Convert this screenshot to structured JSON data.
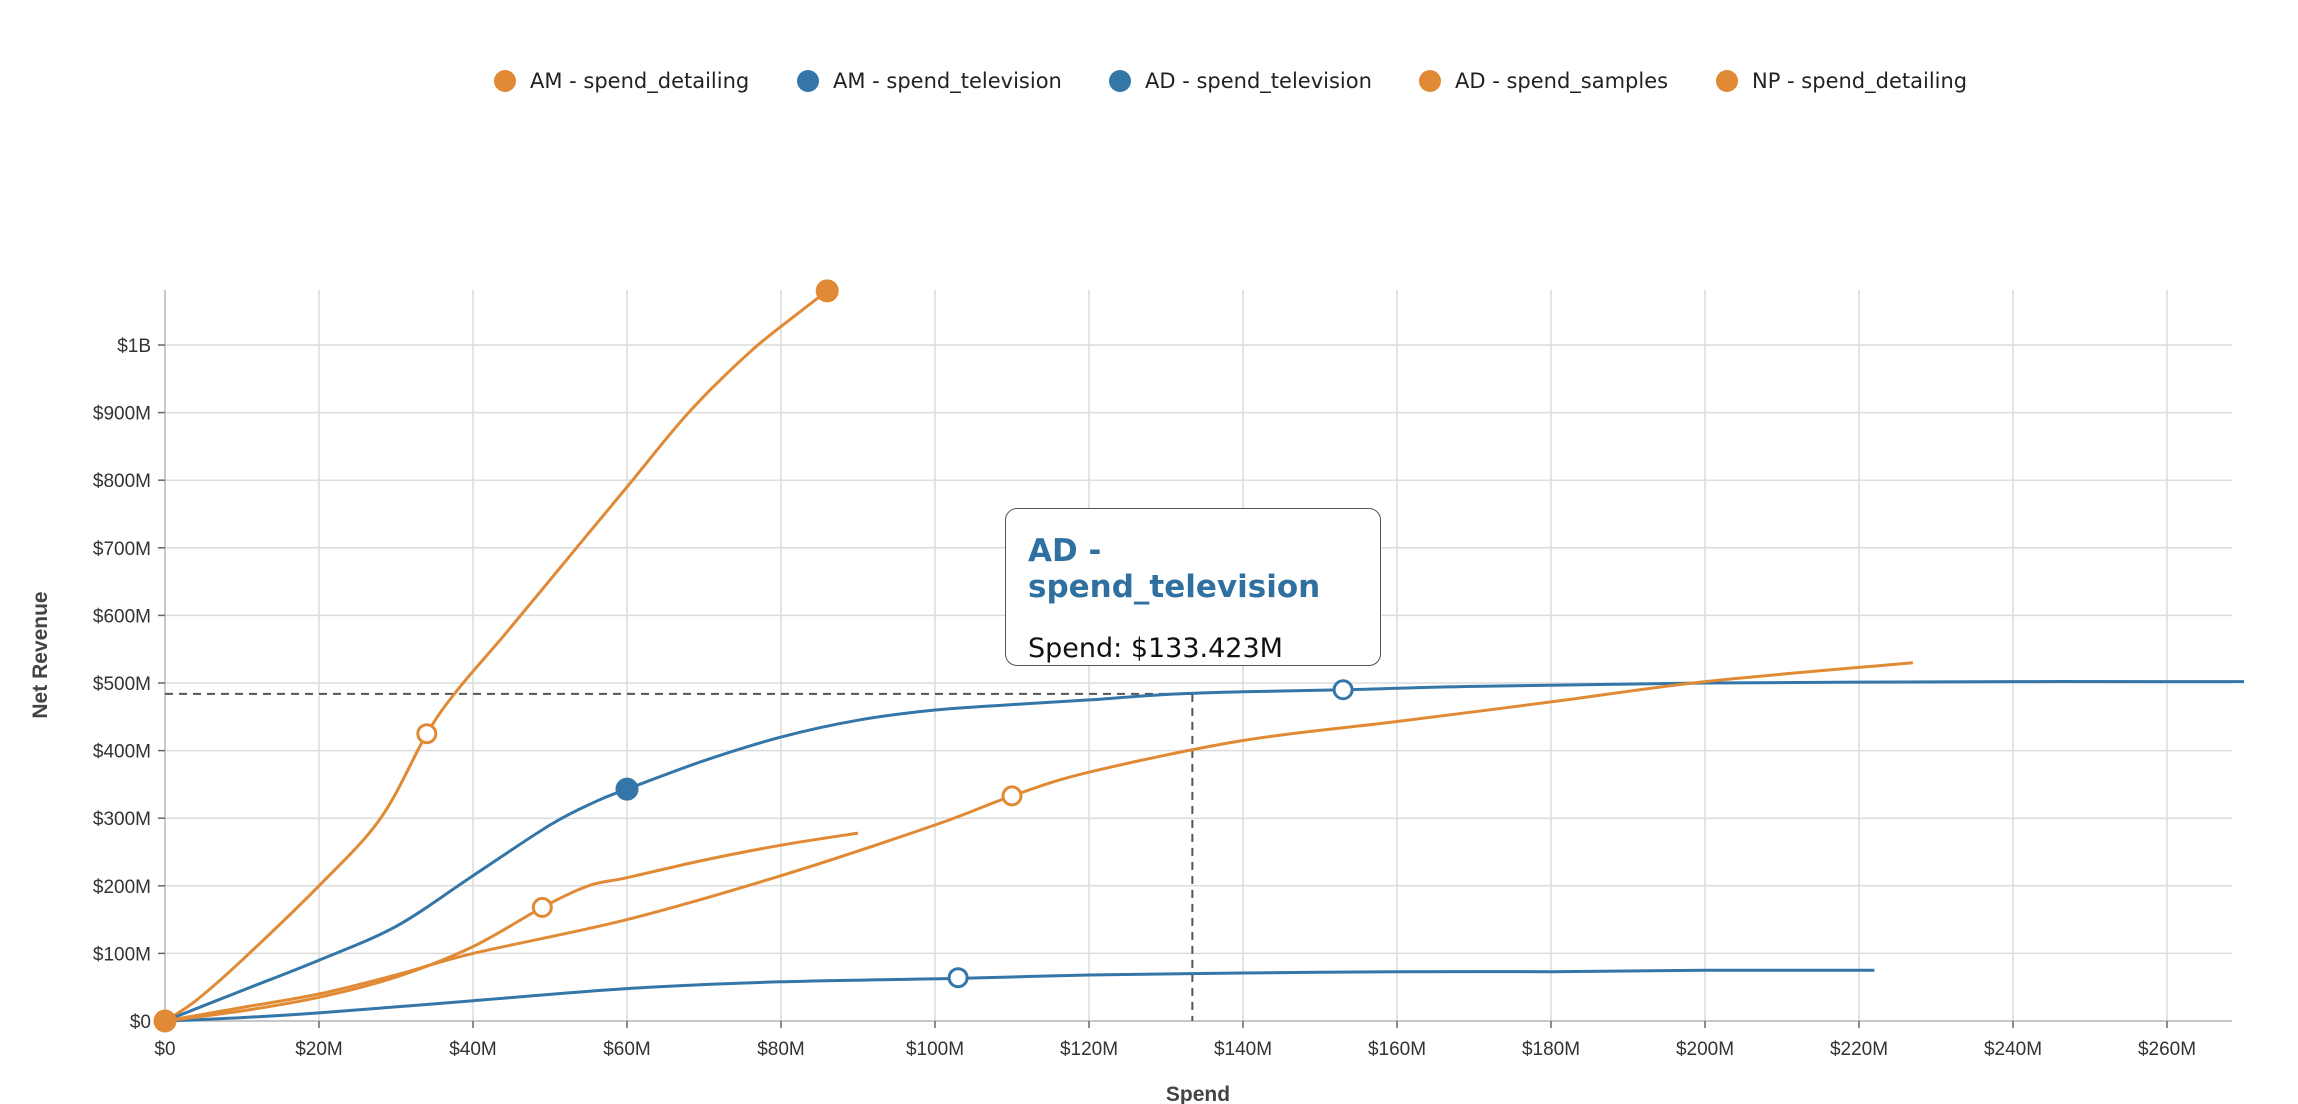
{
  "chart_data": {
    "type": "line",
    "title": "",
    "xlabel": "Spend",
    "ylabel": "Net Revenue",
    "xlim": [
      0,
      270
    ],
    "ylim": [
      0,
      1080
    ],
    "x_unit": "$M",
    "y_unit": "$M",
    "grid": true,
    "legend_position": "top-center",
    "x_ticks": [
      0,
      20,
      40,
      60,
      80,
      100,
      120,
      140,
      160,
      180,
      200,
      220,
      240,
      260
    ],
    "x_tick_labels": [
      "$0",
      "$20M",
      "$40M",
      "$60M",
      "$80M",
      "$100M",
      "$120M",
      "$140M",
      "$160M",
      "$180M",
      "$200M",
      "$220M",
      "$240M",
      "$260M"
    ],
    "y_ticks": [
      0,
      100,
      200,
      300,
      400,
      500,
      600,
      700,
      800,
      900,
      1000
    ],
    "y_tick_labels": [
      "$0",
      "$100M",
      "$200M",
      "$300M",
      "$400M",
      "$500M",
      "$600M",
      "$700M",
      "$800M",
      "$900M",
      "$1B"
    ],
    "series": [
      {
        "name": "AM - spend_detailing",
        "color": "#e08a35",
        "points": [
          [
            0,
            0
          ],
          [
            4,
            30
          ],
          [
            10,
            90
          ],
          [
            20,
            200
          ],
          [
            28,
            300
          ],
          [
            34,
            425
          ],
          [
            38,
            490
          ],
          [
            44,
            570
          ],
          [
            52,
            680
          ],
          [
            60,
            790
          ],
          [
            68,
            900
          ],
          [
            76,
            990
          ],
          [
            82,
            1045
          ],
          [
            86,
            1080
          ]
        ],
        "markers": [
          {
            "x": 34,
            "y": 425,
            "filled": false
          },
          {
            "x": 86,
            "y": 1080,
            "filled": true
          }
        ]
      },
      {
        "name": "AM - spend_television",
        "color": "#3476a8",
        "points": [
          [
            0,
            0
          ],
          [
            10,
            45
          ],
          [
            20,
            90
          ],
          [
            30,
            140
          ],
          [
            40,
            215
          ],
          [
            50,
            290
          ],
          [
            56,
            325
          ],
          [
            60,
            343
          ],
          [
            70,
            385
          ],
          [
            80,
            420
          ],
          [
            90,
            445
          ],
          [
            100,
            460
          ],
          [
            110,
            468
          ],
          [
            120,
            475
          ],
          [
            130,
            483
          ],
          [
            140,
            487
          ],
          [
            153,
            490
          ],
          [
            170,
            495
          ],
          [
            200,
            500
          ],
          [
            240,
            502
          ],
          [
            270,
            502
          ]
        ],
        "markers": [
          {
            "x": 60,
            "y": 343,
            "filled": true
          },
          {
            "x": 153,
            "y": 490,
            "filled": false
          }
        ]
      },
      {
        "name": "AD - spend_television",
        "color": "#3476a8",
        "points": [
          [
            0,
            0
          ],
          [
            10,
            5
          ],
          [
            20,
            12
          ],
          [
            40,
            30
          ],
          [
            60,
            48
          ],
          [
            80,
            58
          ],
          [
            103,
            63
          ],
          [
            120,
            68
          ],
          [
            140,
            71
          ],
          [
            160,
            73
          ],
          [
            180,
            73
          ],
          [
            200,
            75
          ],
          [
            222,
            75
          ]
        ],
        "markers": [
          {
            "x": 103,
            "y": 64,
            "filled": false
          }
        ]
      },
      {
        "name": "AD - spend_samples",
        "color": "#e08a35",
        "points": [
          [
            0,
            0
          ],
          [
            10,
            15
          ],
          [
            20,
            35
          ],
          [
            30,
            65
          ],
          [
            40,
            110
          ],
          [
            49,
            168
          ],
          [
            55,
            200
          ],
          [
            60,
            212
          ],
          [
            70,
            238
          ],
          [
            80,
            260
          ],
          [
            90,
            278
          ]
        ],
        "markers": [
          {
            "x": 49,
            "y": 168,
            "filled": false
          }
        ]
      },
      {
        "name": "NP - spend_detailing",
        "color": "#e08a35",
        "points": [
          [
            0,
            0
          ],
          [
            10,
            20
          ],
          [
            20,
            40
          ],
          [
            30,
            68
          ],
          [
            40,
            100
          ],
          [
            60,
            150
          ],
          [
            80,
            215
          ],
          [
            100,
            290
          ],
          [
            110,
            333
          ],
          [
            120,
            368
          ],
          [
            140,
            415
          ],
          [
            160,
            443
          ],
          [
            180,
            472
          ],
          [
            200,
            502
          ],
          [
            227,
            530
          ]
        ],
        "markers": [
          {
            "x": 0,
            "y": 0,
            "filled": true
          },
          {
            "x": 110,
            "y": 333,
            "filled": false
          }
        ]
      }
    ],
    "crosshair": {
      "x": 133.423,
      "y": 484
    }
  },
  "tooltip": {
    "title": "AD - spend_television",
    "label": "Spend",
    "value": "$133.423M"
  }
}
